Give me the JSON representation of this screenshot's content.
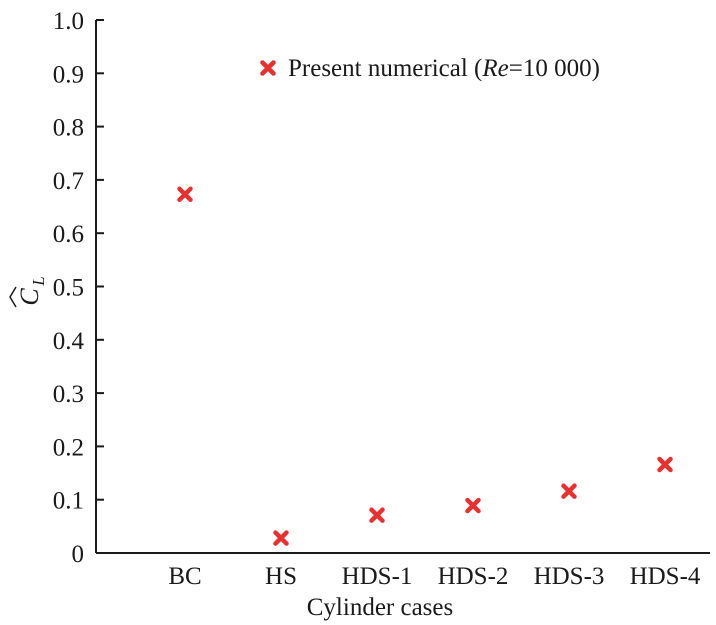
{
  "chart_data": {
    "type": "scatter",
    "title": "",
    "xlabel": "Cylinder cases",
    "ylabel": {
      "symbol": "C",
      "subscript": "L",
      "accent": "hat"
    },
    "ylim": [
      0,
      1.0
    ],
    "yticks": [
      "0",
      "0.1",
      "0.2",
      "0.3",
      "0.4",
      "0.5",
      "0.6",
      "0.7",
      "0.8",
      "0.9",
      "1.0"
    ],
    "categories": [
      "BC",
      "HS",
      "HDS-1",
      "HDS-2",
      "HDS-3",
      "HDS-4"
    ],
    "series": [
      {
        "name": "Present numerical (Re=10 000)",
        "marker": "x",
        "color": "#e8312f",
        "values": [
          0.673,
          0.028,
          0.071,
          0.089,
          0.116,
          0.166
        ]
      }
    ],
    "legend": {
      "position": "top-right",
      "label_parts": [
        "Present numerical (",
        "Re",
        "=10 000)"
      ]
    },
    "grid": false
  }
}
